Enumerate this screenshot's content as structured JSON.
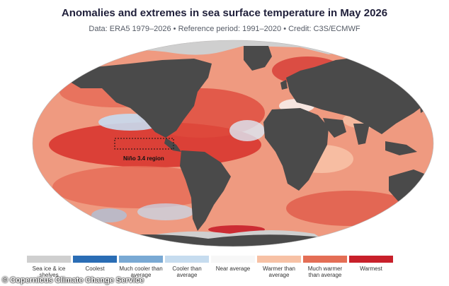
{
  "title": "Anomalies and extremes in sea surface temperature in May 2026",
  "subtitle": "Data: ERA5 1979–2026 • Reference period: 1991–2020 • Credit: C3S/ECMWF",
  "map": {
    "region_label": "Niño 3.4 region"
  },
  "legend": [
    {
      "label": "Sea ice & ice shelves",
      "color": "#cfcfcf"
    },
    {
      "label": "Coolest",
      "color": "#2a6db5"
    },
    {
      "label": "Much cooler than average",
      "color": "#79a9d4"
    },
    {
      "label": "Cooler than average",
      "color": "#c6dcef"
    },
    {
      "label": "Near average",
      "color": "#f7f7f7"
    },
    {
      "label": "Warmer than average",
      "color": "#f7c1a5"
    },
    {
      "label": "Much warmer than average",
      "color": "#e46e55"
    },
    {
      "label": "Warmest",
      "color": "#c8202a"
    }
  ],
  "credit": "© Copernicus Climate Change Service",
  "colors": {
    "land": "#4a4a4a",
    "ocean_base": "#ef9a80",
    "sea_ice": "#cfcfcf"
  }
}
